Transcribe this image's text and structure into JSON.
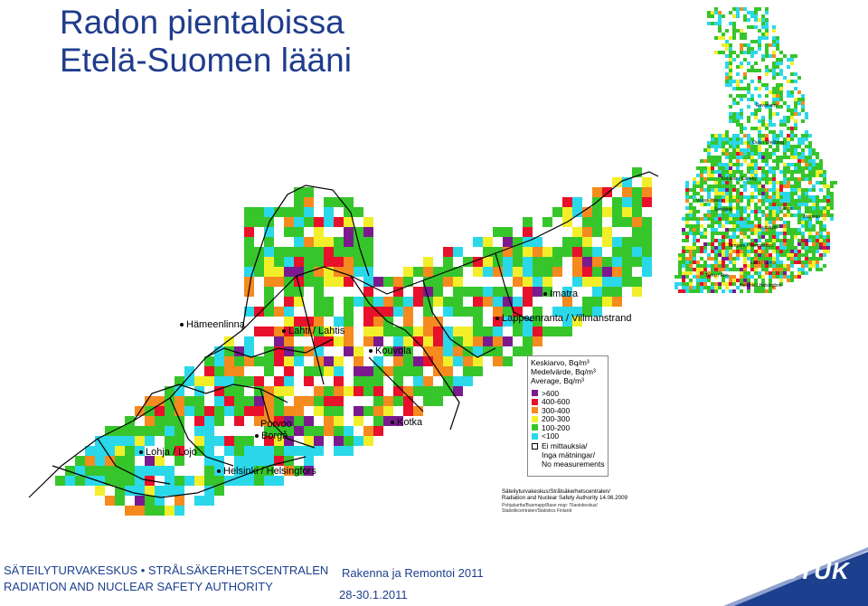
{
  "title": {
    "line1": "Radon pientaloissa",
    "line2": "Etelä-Suomen lääni"
  },
  "cities": {
    "hameenlinna": "Hämeenlinna",
    "lahti": "Lahti / Lahtis",
    "kouvola": "Kouvola",
    "imatra": "Imatra",
    "lappeenranta": "Lappeenranta / Villmanstrand",
    "porvoo": "Porvoo",
    "borga": "Borgå",
    "kotka": "Kotka",
    "lohja": "Lohja / Lojo",
    "helsinki": "Helsinki / Helsingfors"
  },
  "finland_cities": {
    "rovaniemi": "Rovaniemi",
    "oulu": "Oulu / Uleåborg",
    "kokkola": "Kokkola / Karleby",
    "vaasa": "Vaasa / Vasa",
    "seinajoki": "Seinäjoki",
    "kuopio": "Kuopio",
    "joensuu": "Joensuu",
    "jyvaskyla": "Jyväskylä",
    "tampere": "Tampere / Tammerfors",
    "lahti": "Lahti / Lahtis",
    "turku": "Turku / Åbo",
    "helsinki": "Helsinki / Helsingfors"
  },
  "legend": {
    "header1": "Keskiarvo, Bq/m³",
    "header2": "Medelvärde, Bq/m³",
    "header3": "Average, Bq/m³",
    "items": [
      {
        "label": ">600",
        "color": "#7a1a8e"
      },
      {
        "label": "400-600",
        "color": "#e8102a"
      },
      {
        "label": "300-400",
        "color": "#f58a1e"
      },
      {
        "label": "200-300",
        "color": "#f2ef2a"
      },
      {
        "label": "100-200",
        "color": "#37c52c"
      },
      {
        "label": "<100",
        "color": "#2ad8ea"
      }
    ],
    "no_data": [
      "Ei mittauksia/",
      "Inga mätningar/",
      "No measurements"
    ]
  },
  "credit": {
    "line1": "Säteilyturvakeskus/Strålsäkerhetscentralen/",
    "line2": "Radiation and Nuclear Safety Authority 14.06.2009",
    "small1": "Pohjakartta/Basmapp/Base map: Tilastokeskus/",
    "small2": "Statistikcentralen/Statistics Finland"
  },
  "footer": {
    "org_line1": "SÄTEILYTURVAKESKUS • STRÅLSÄKERHETSCENTRALEN",
    "org_line2": "RADIATION AND NUCLEAR SAFETY AUTHORITY",
    "event": "Rakenna ja Remontoi 2011",
    "dates": "28-30.1.2011",
    "brand": "STUK"
  },
  "colors": {
    "title": "#1f3c8c",
    "footer_text": "#1c3f8e",
    "brand_band": "#1c3f8e",
    "legend_no_data": "#ffffff"
  }
}
